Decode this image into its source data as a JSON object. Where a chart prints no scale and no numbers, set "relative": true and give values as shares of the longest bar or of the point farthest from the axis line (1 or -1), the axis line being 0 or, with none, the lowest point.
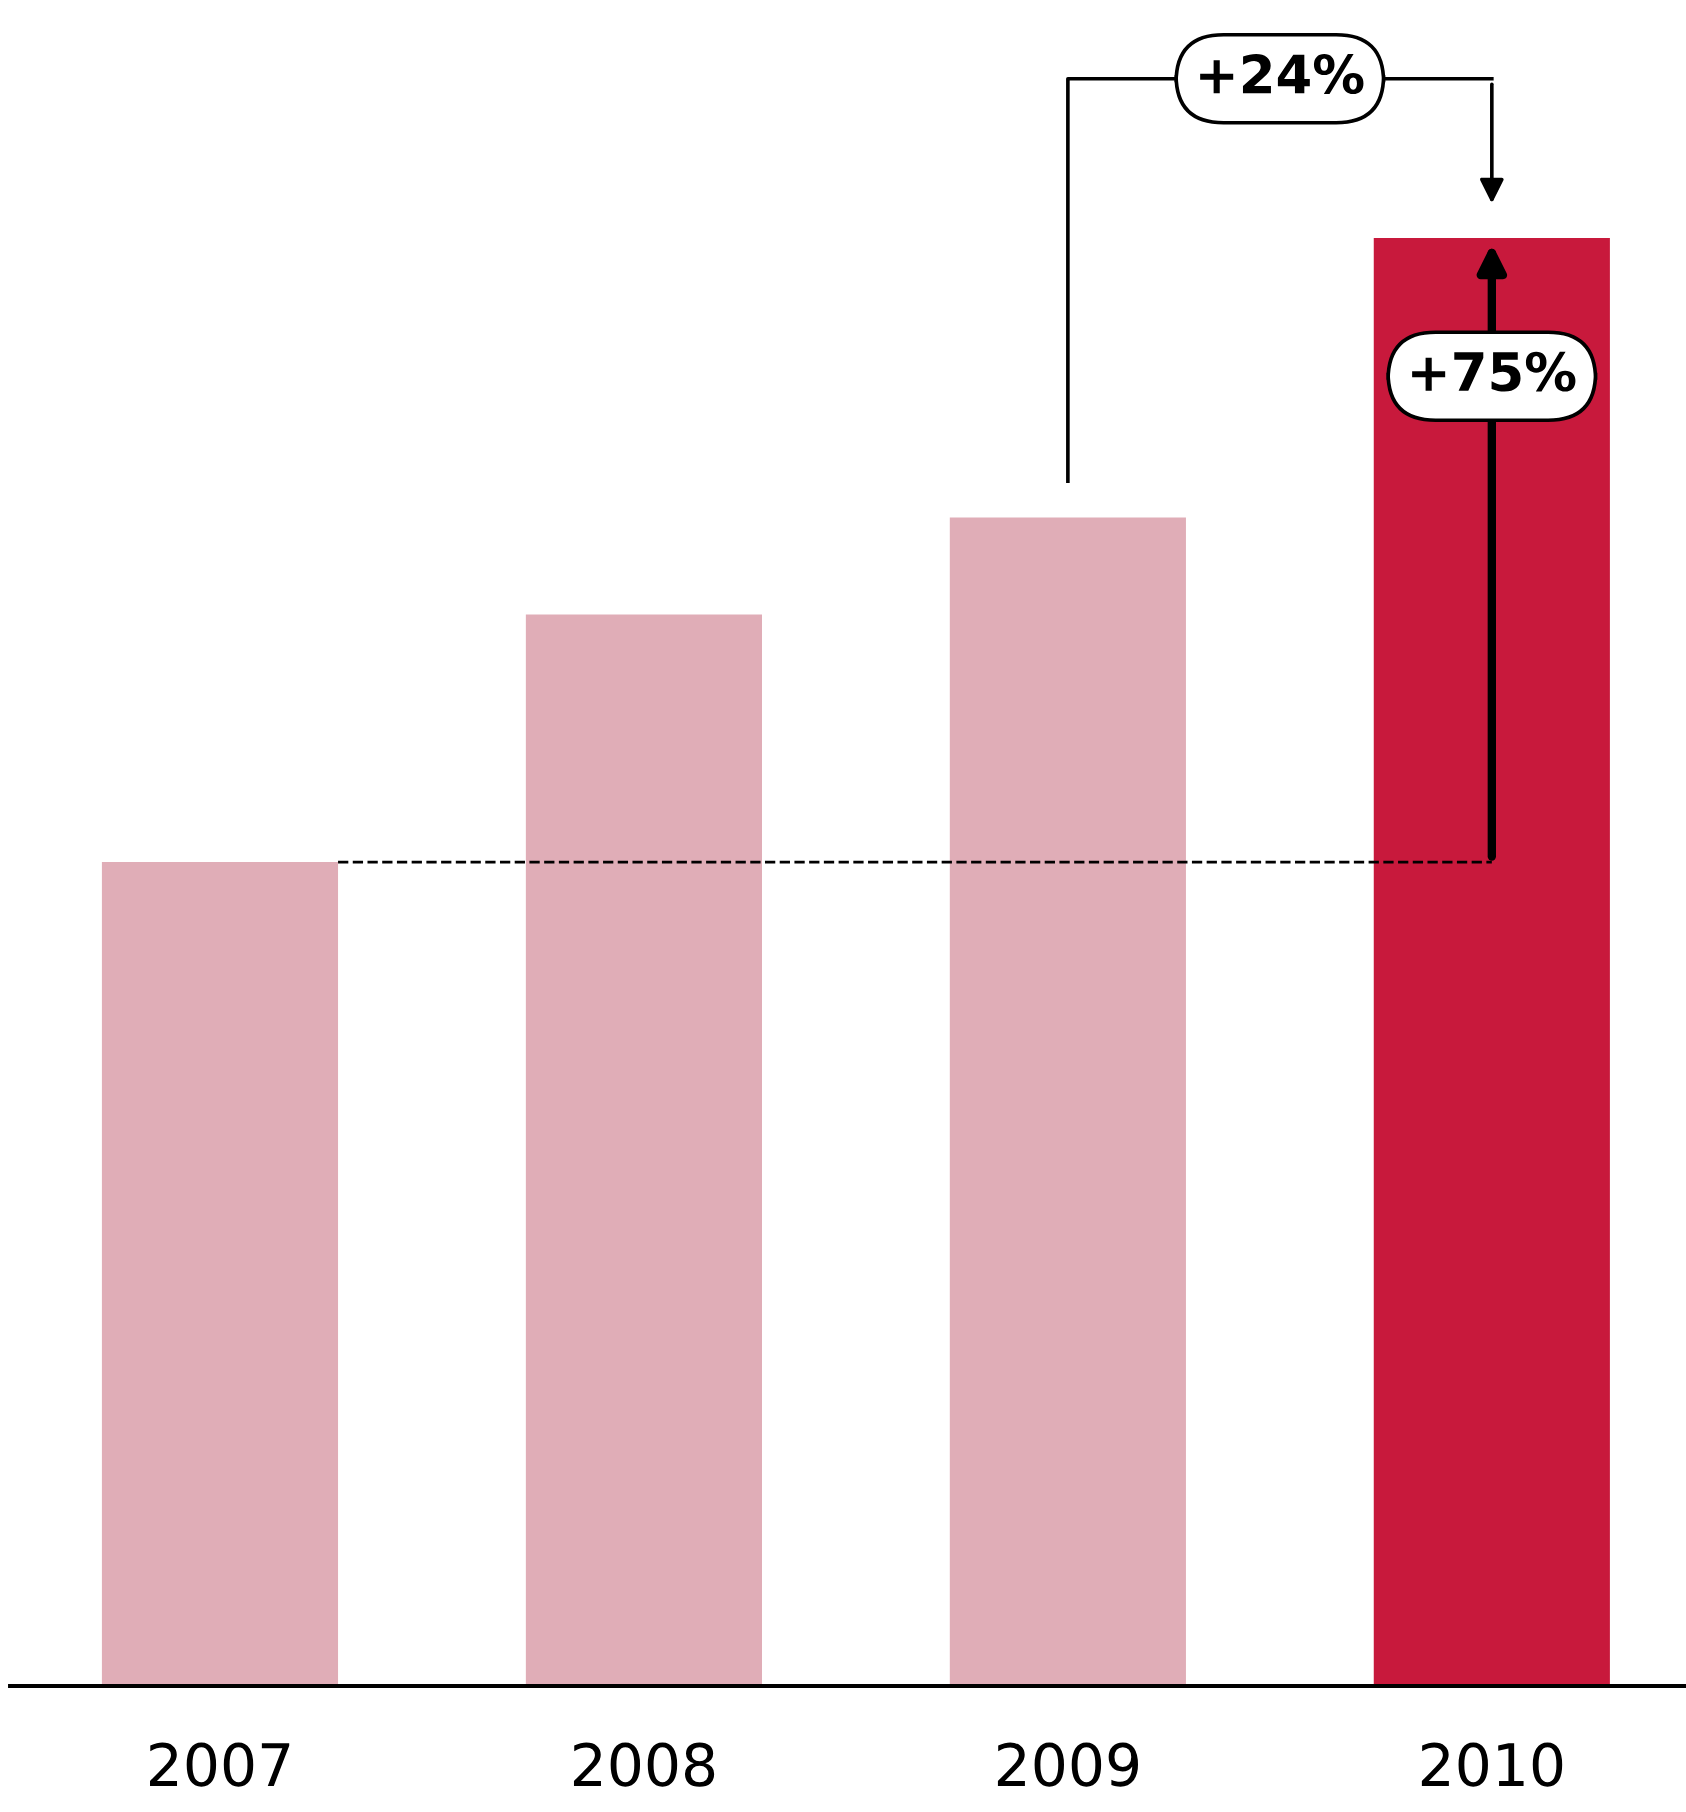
{
  "chart_data": {
    "type": "bar",
    "relative": true,
    "categories": [
      "2007",
      "2008",
      "2009",
      "2010"
    ],
    "values": [
      0.569,
      0.74,
      0.807,
      1.0
    ],
    "colors": [
      "#e0adb7",
      "#e0adb7",
      "#e0adb7",
      "#c8193c"
    ],
    "ref_lines": [
      {
        "axis": "y",
        "value": 0.569,
        "label": null,
        "line_style": "dashed",
        "color": "#000000"
      }
    ],
    "annotations": [
      "+24%",
      "+75%"
    ],
    "grid": false,
    "legend": false
  }
}
